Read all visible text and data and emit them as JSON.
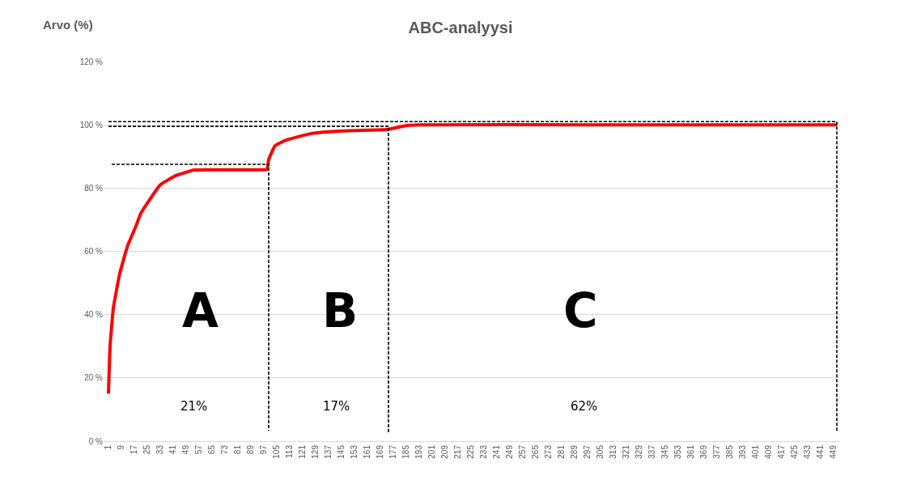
{
  "chart_data": {
    "type": "line",
    "title": "ABC-analyysi",
    "ylabel": "Arvo (%)",
    "xlim": [
      -2,
      453
    ],
    "xticks": [
      1,
      9,
      17,
      25,
      33,
      41,
      49,
      57,
      65,
      73,
      81,
      89,
      97,
      105,
      113,
      121,
      129,
      137,
      145,
      153,
      161,
      169,
      177,
      185,
      193,
      201,
      209,
      217,
      225,
      233,
      241,
      249,
      257,
      265,
      273,
      281,
      289,
      297,
      305,
      313,
      321,
      329,
      337,
      345,
      353,
      361,
      369,
      377,
      385,
      393,
      401,
      409,
      417,
      425,
      433,
      441,
      449
    ],
    "ylim": [
      0,
      120
    ],
    "yticks": [
      {
        "value": 0,
        "label": "0 %"
      },
      {
        "value": 20,
        "label": "20 %"
      },
      {
        "value": 40,
        "label": "40 %"
      },
      {
        "value": 60,
        "label": "60 %"
      },
      {
        "value": 80,
        "label": "80 %"
      },
      {
        "value": 100,
        "label": "100 %"
      },
      {
        "value": 120,
        "label": "120 %"
      }
    ],
    "grid": "y",
    "marker": "none",
    "series": [
      {
        "color": "#ff0000",
        "x": [
          1,
          2,
          4,
          5,
          8,
          13,
          18,
          21,
          33,
          43,
          54,
          70,
          98,
          99,
          100,
          104,
          111,
          126,
          143,
          173,
          175,
          185,
          193,
          300,
          451
        ],
        "values": [
          15,
          30,
          42,
          45,
          53,
          62,
          68,
          72,
          81,
          84,
          85.7,
          85.8,
          85.8,
          86,
          89,
          93.4,
          95.2,
          97.2,
          98,
          98.5,
          98.7,
          99.7,
          100,
          100,
          100
        ]
      },
      {
        "color": "#000000",
        "line_style": "dashed",
        "x": [
          3,
          100,
          100
        ],
        "values": [
          87.5,
          87.5,
          3.3
        ]
      },
      {
        "color": "#000000",
        "line_style": "dashed",
        "x": [
          1,
          174,
          174
        ],
        "values": [
          99.5,
          99.5,
          2.5
        ]
      },
      {
        "color": "#000000",
        "line_style": "dashed",
        "x": [
          1,
          451,
          451
        ],
        "values": [
          101,
          101,
          3
        ]
      }
    ],
    "annotations": [
      "A",
      "B",
      "C",
      "21%",
      "17%",
      "62%"
    ]
  }
}
